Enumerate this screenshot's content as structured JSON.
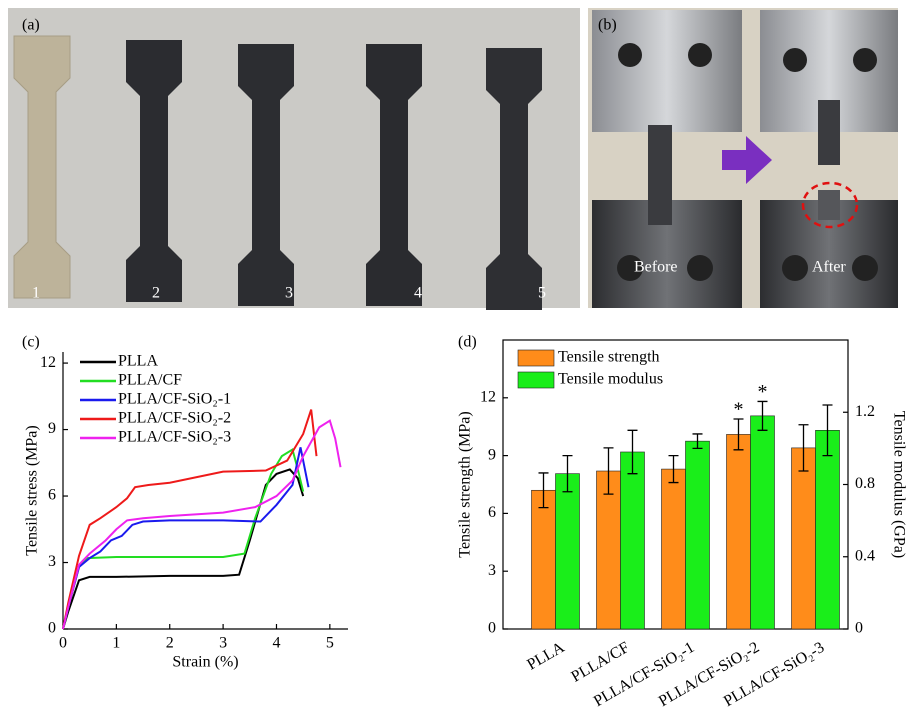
{
  "panel_a": {
    "label": "(a)",
    "sample_labels": [
      "1",
      "2",
      "3",
      "4",
      "5"
    ]
  },
  "panel_b": {
    "label": "(b)",
    "before": "Before",
    "after": "After"
  },
  "chart_data": [
    {
      "type": "line",
      "panel_label": "(c)",
      "x_label": "Strain (%)",
      "y_label": "Tensile stress (MPa)",
      "xlim": [
        0,
        5.34
      ],
      "xticks": [
        0,
        1,
        2,
        3,
        4,
        5
      ],
      "ylim": [
        0,
        12.5
      ],
      "yticks": [
        0,
        3,
        6,
        9,
        12
      ],
      "legend": "upper left",
      "series": [
        {
          "name": "PLLA",
          "color": "#000000",
          "x": [
            0,
            0.1,
            0.3,
            0.5,
            1,
            2,
            3,
            3.3,
            3.5,
            3.8,
            4.0,
            4.25,
            4.4,
            4.5
          ],
          "values": [
            0,
            0.8,
            2.2,
            2.35,
            2.35,
            2.4,
            2.4,
            2.45,
            4,
            6.5,
            7,
            7.2,
            6.8,
            6.0
          ]
        },
        {
          "name": "PLLA/CF",
          "color": "#22dd22",
          "x": [
            0,
            0.1,
            0.3,
            0.45,
            1,
            2,
            3,
            3.4,
            3.6,
            3.9,
            4.1,
            4.3,
            4.4,
            4.5
          ],
          "values": [
            0,
            1,
            2.8,
            3.2,
            3.25,
            3.25,
            3.25,
            3.4,
            5,
            7,
            7.8,
            8.1,
            7.2,
            6.2
          ]
        },
        {
          "name": "PLLA/CF-SiO₂-1",
          "color": "#1a1aee",
          "x": [
            0,
            0.1,
            0.3,
            0.5,
            0.7,
            0.9,
            1.1,
            1.3,
            1.5,
            2,
            3,
            3.7,
            4.0,
            4.3,
            4.45,
            4.6
          ],
          "values": [
            0,
            1,
            2.8,
            3.2,
            3.5,
            4,
            4.2,
            4.7,
            4.85,
            4.9,
            4.9,
            4.85,
            5.6,
            6.5,
            8.2,
            6.4
          ]
        },
        {
          "name": "PLLA/CF-SiO₂-2",
          "color": "#ee1a1a",
          "x": [
            0,
            0.1,
            0.3,
            0.5,
            0.7,
            1,
            1.2,
            1.35,
            1.6,
            2,
            3,
            3.8,
            4.2,
            4.5,
            4.65,
            4.75
          ],
          "values": [
            0,
            1.2,
            3.3,
            4.7,
            5,
            5.5,
            5.9,
            6.4,
            6.5,
            6.6,
            7.1,
            7.15,
            7.6,
            8.8,
            9.9,
            7.8
          ]
        },
        {
          "name": "PLLA/CF-SiO₂-3",
          "color": "#ee22ee",
          "x": [
            0,
            0.1,
            0.3,
            0.5,
            0.8,
            1,
            1.2,
            1.5,
            2,
            3,
            3.6,
            4,
            4.3,
            4.5,
            4.8,
            5,
            5.1,
            5.2
          ],
          "values": [
            0,
            1,
            2.9,
            3.4,
            4,
            4.5,
            4.9,
            5,
            5.1,
            5.25,
            5.5,
            6,
            6.7,
            7.8,
            9.1,
            9.4,
            8.6,
            7.3
          ]
        }
      ]
    },
    {
      "type": "bar",
      "panel_label": "(d)",
      "y_label": "Tensile strength (MPa)",
      "y2_label": "Tensile modulus (GPa)",
      "categories": [
        "PLLA",
        "PLLA/CF",
        "PLLA/CF-SiO₂-1",
        "PLLA/CF-SiO₂-2",
        "PLLA/CF-SiO₂-3"
      ],
      "ylim": [
        0,
        15
      ],
      "yticks": [
        0,
        3,
        6,
        9,
        12
      ],
      "y2lim": [
        0,
        1.6
      ],
      "y2ticks": [
        0,
        0.4,
        0.8,
        1.2
      ],
      "legend": "upper left",
      "series": [
        {
          "name": "Tensile strength",
          "color": "#ff8c1a",
          "values": [
            7.2,
            8.2,
            8.3,
            10.1,
            9.4
          ],
          "errors": [
            0.9,
            1.2,
            0.7,
            0.8,
            1.2
          ]
        },
        {
          "name": "Tensile modulus",
          "color": "#1aee1a",
          "axis": "y2",
          "values": [
            0.86,
            0.98,
            1.04,
            1.18,
            1.1
          ],
          "errors": [
            0.1,
            0.12,
            0.04,
            0.08,
            0.14
          ]
        }
      ],
      "annotations": [
        {
          "text": "*",
          "category": "PLLA/CF-SiO₂-2",
          "series": "Tensile strength"
        },
        {
          "text": "*",
          "category": "PLLA/CF-SiO₂-2",
          "series": "Tensile modulus"
        }
      ]
    }
  ]
}
